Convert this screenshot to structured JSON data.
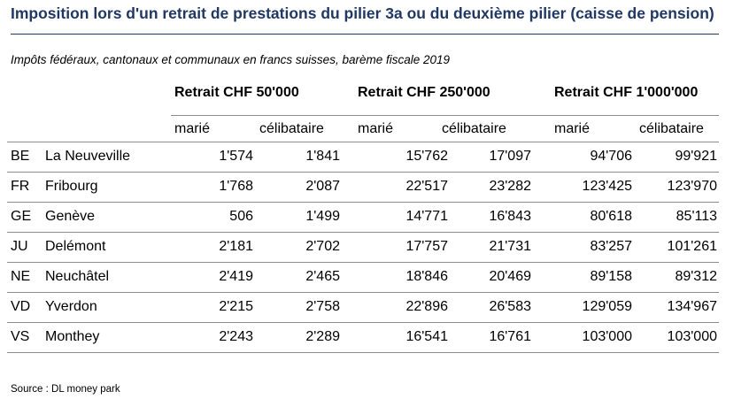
{
  "title": "Imposition lors d'un retrait de prestations du pilier 3a ou du deuxième pilier (caisse de pension)",
  "subtitle": "Impôts fédéraux, cantonaux et communaux en francs suisses, barème fiscale 2019",
  "groups": [
    "Retrait CHF 50'000",
    "Retrait CHF 250'000",
    "Retrait CHF 1'000'000"
  ],
  "subheaders": [
    "marié",
    "célibataire",
    "marié",
    "célibataire",
    "marié",
    "célibataire"
  ],
  "rows": [
    {
      "canton": "BE",
      "city": "La Neuveville",
      "values": [
        "1'574",
        "1'841",
        "15'762",
        "17'097",
        "94'706",
        "99'921"
      ]
    },
    {
      "canton": "FR",
      "city": "Fribourg",
      "values": [
        "1'768",
        "2'087",
        "22'517",
        "23'282",
        "123'425",
        "123'970"
      ]
    },
    {
      "canton": "GE",
      "city": "Genève",
      "values": [
        "506",
        "1'499",
        "14'771",
        "16'843",
        "80'618",
        "85'113"
      ]
    },
    {
      "canton": "JU",
      "city": "Delémont",
      "values": [
        "2'181",
        "2'702",
        "17'757",
        "21'731",
        "83'257",
        "101'261"
      ]
    },
    {
      "canton": "NE",
      "city": "Neuchâtel",
      "values": [
        "2'419",
        "2'465",
        "18'846",
        "20'469",
        "89'158",
        "89'312"
      ]
    },
    {
      "canton": "VD",
      "city": "Yverdon",
      "values": [
        "2'215",
        "2'758",
        "22'896",
        "26'583",
        "129'059",
        "134'967"
      ]
    },
    {
      "canton": "VS",
      "city": "Monthey",
      "values": [
        "2'243",
        "2'289",
        "16'541",
        "16'761",
        "103'000",
        "103'000"
      ]
    }
  ],
  "source": "Source : DL money park"
}
